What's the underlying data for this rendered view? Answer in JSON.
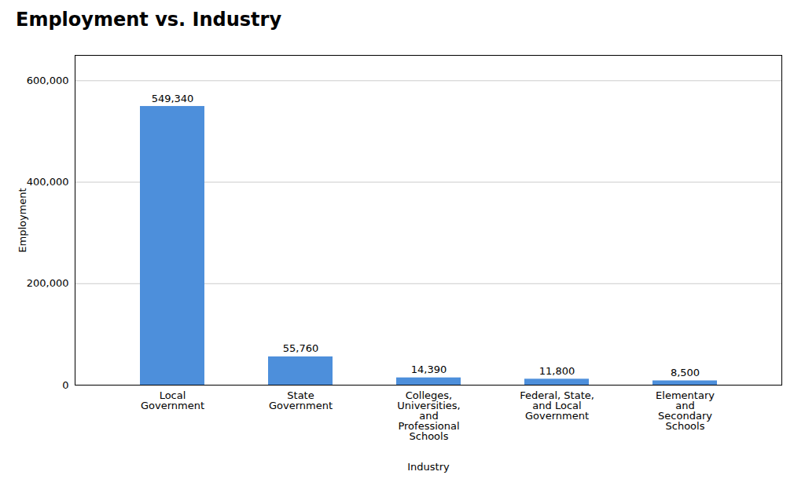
{
  "chart_data": {
    "type": "bar",
    "title": "Employment  vs. Industry",
    "xlabel": "Industry",
    "ylabel": "Employment",
    "categories": [
      "Local\nGovernment",
      "State\nGovernment",
      "Colleges,\nUniversities,\nand\nProfessional\nSchools",
      "Federal, State,\nand Local\nGovernment",
      "Elementary\nand\nSecondary\nSchools"
    ],
    "values": [
      549340,
      55760,
      14390,
      11800,
      8500
    ],
    "value_labels": [
      "549,340",
      "55,760",
      "14,390",
      "11,800",
      "8,500"
    ],
    "data_labels": true,
    "color": "#4d8fdb",
    "ylim": [
      0,
      650000
    ],
    "yticks": [
      0,
      {
        "value": 200000,
        "label": "200,000"
      },
      {
        "value": 400000,
        "label": "400,000"
      },
      {
        "value": 600000,
        "label": "600,000"
      }
    ],
    "grid": true
  }
}
